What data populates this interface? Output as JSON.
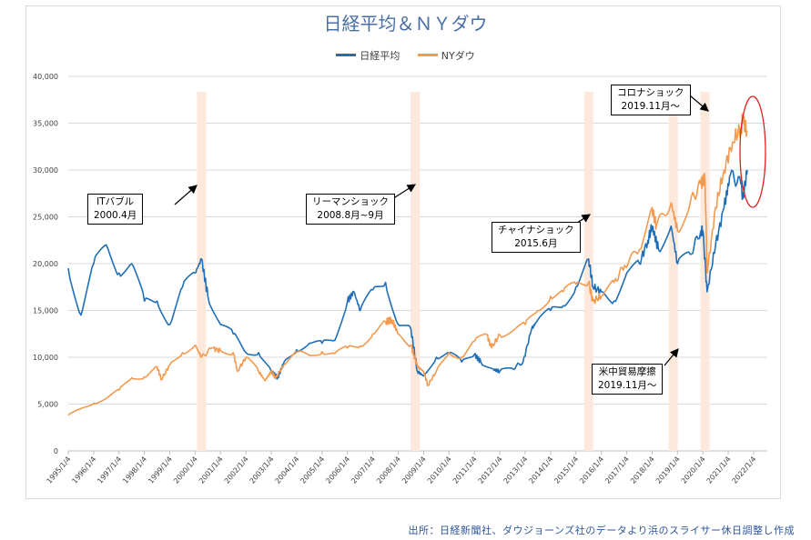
{
  "chart_data": {
    "type": "line",
    "title": "日経平均＆ＮＹダウ",
    "legend_position": "top",
    "grid": true,
    "ylim": [
      0,
      40000
    ],
    "y_ticks": [
      "0",
      "5,000",
      "10,000",
      "15,000",
      "20,000",
      "25,000",
      "30,000",
      "35,000",
      "40,000"
    ],
    "x_ticks": [
      "1995/1/4",
      "1996/1/4",
      "1997/1/4",
      "1998/1/4",
      "1999/1/4",
      "2000/1/4",
      "2001/1/4",
      "2002/1/4",
      "2003/1/4",
      "2004/1/4",
      "2005/1/4",
      "2006/1/4",
      "2007/1/4",
      "2008/1/4",
      "2009/1/4",
      "2010/1/4",
      "2011/1/4",
      "2012/1/4",
      "2013/1/4",
      "2014/1/4",
      "2015/1/4",
      "2016/1/4",
      "2017/1/4",
      "2018/1/4",
      "2019/1/4",
      "2020/1/4",
      "2021/1/4",
      "2022/1/4"
    ],
    "series": [
      {
        "name": "日経平均",
        "color": "#1f6fb8",
        "points": [
          [
            "1995-01",
            19500
          ],
          [
            "1995-07",
            14500
          ],
          [
            "1996-01",
            20000
          ],
          [
            "1996-07",
            22000
          ],
          [
            "1997-01",
            19000
          ],
          [
            "1997-07",
            20000
          ],
          [
            "1998-01",
            16000
          ],
          [
            "1998-07",
            16000
          ],
          [
            "1999-01",
            13500
          ],
          [
            "1999-07",
            17500
          ],
          [
            "2000-01",
            19000
          ],
          [
            "2000-04",
            20500
          ],
          [
            "2000-07",
            16500
          ],
          [
            "2001-01",
            13500
          ],
          [
            "2001-07",
            12500
          ],
          [
            "2002-01",
            10500
          ],
          [
            "2002-07",
            10500
          ],
          [
            "2003-01",
            8500
          ],
          [
            "2003-04",
            7800
          ],
          [
            "2003-07",
            9500
          ],
          [
            "2004-01",
            10800
          ],
          [
            "2004-07",
            11500
          ],
          [
            "2005-01",
            11500
          ],
          [
            "2005-07",
            11800
          ],
          [
            "2006-01",
            16000
          ],
          [
            "2006-04",
            17000
          ],
          [
            "2006-07",
            15000
          ],
          [
            "2007-01",
            17200
          ],
          [
            "2007-07",
            18000
          ],
          [
            "2008-01",
            13500
          ],
          [
            "2008-07",
            13000
          ],
          [
            "2008-10",
            8500
          ],
          [
            "2009-01",
            8000
          ],
          [
            "2009-07",
            10000
          ],
          [
            "2010-01",
            10500
          ],
          [
            "2010-07",
            9500
          ],
          [
            "2011-01",
            10300
          ],
          [
            "2011-04",
            9500
          ],
          [
            "2011-10",
            8700
          ],
          [
            "2012-01",
            8500
          ],
          [
            "2012-07",
            8800
          ],
          [
            "2012-12",
            9500
          ],
          [
            "2013-04",
            13000
          ],
          [
            "2013-07",
            14000
          ],
          [
            "2014-01",
            15000
          ],
          [
            "2014-07",
            15500
          ],
          [
            "2015-01",
            17500
          ],
          [
            "2015-07",
            20500
          ],
          [
            "2015-09",
            17500
          ],
          [
            "2016-01",
            17000
          ],
          [
            "2016-07",
            16000
          ],
          [
            "2017-01",
            19000
          ],
          [
            "2017-07",
            20000
          ],
          [
            "2017-11",
            22500
          ],
          [
            "2018-01",
            24000
          ],
          [
            "2018-04",
            21500
          ],
          [
            "2018-10",
            24000
          ],
          [
            "2019-01",
            20000
          ],
          [
            "2019-07",
            21000
          ],
          [
            "2019-12",
            23500
          ],
          [
            "2020-01",
            23500
          ],
          [
            "2020-03",
            17000
          ],
          [
            "2020-07",
            22000
          ],
          [
            "2020-11",
            26000
          ],
          [
            "2021-02",
            29500
          ],
          [
            "2021-07",
            28500
          ],
          [
            "2021-08",
            27000
          ],
          [
            "2021-10",
            30000
          ]
        ]
      },
      {
        "name": "NYダウ",
        "color": "#f39a4f",
        "points": [
          [
            "1995-01",
            3800
          ],
          [
            "1995-07",
            4500
          ],
          [
            "1996-01",
            5100
          ],
          [
            "1996-07",
            5600
          ],
          [
            "1997-01",
            6500
          ],
          [
            "1997-07",
            7800
          ],
          [
            "1998-01",
            7900
          ],
          [
            "1998-07",
            9000
          ],
          [
            "1998-09",
            7600
          ],
          [
            "1999-01",
            9200
          ],
          [
            "1999-07",
            10500
          ],
          [
            "2000-01",
            11300
          ],
          [
            "2000-04",
            10000
          ],
          [
            "2000-09",
            11000
          ],
          [
            "2001-01",
            10700
          ],
          [
            "2001-07",
            10500
          ],
          [
            "2001-09",
            8500
          ],
          [
            "2002-01",
            10000
          ],
          [
            "2002-07",
            8500
          ],
          [
            "2002-10",
            7500
          ],
          [
            "2003-01",
            8500
          ],
          [
            "2003-03",
            7800
          ],
          [
            "2003-07",
            9200
          ],
          [
            "2004-01",
            10500
          ],
          [
            "2004-07",
            10200
          ],
          [
            "2005-01",
            10600
          ],
          [
            "2005-07",
            10400
          ],
          [
            "2006-01",
            11000
          ],
          [
            "2006-07",
            11200
          ],
          [
            "2007-01",
            12500
          ],
          [
            "2007-07",
            13800
          ],
          [
            "2007-10",
            14000
          ],
          [
            "2008-01",
            12500
          ],
          [
            "2008-07",
            11300
          ],
          [
            "2008-10",
            9000
          ],
          [
            "2009-01",
            8500
          ],
          [
            "2009-03",
            7000
          ],
          [
            "2009-07",
            8500
          ],
          [
            "2010-01",
            10500
          ],
          [
            "2010-07",
            10000
          ],
          [
            "2011-01",
            11700
          ],
          [
            "2011-07",
            12400
          ],
          [
            "2011-09",
            11000
          ],
          [
            "2012-01",
            12400
          ],
          [
            "2012-07",
            12800
          ],
          [
            "2013-01",
            13500
          ],
          [
            "2013-07",
            15000
          ],
          [
            "2014-01",
            16500
          ],
          [
            "2014-07",
            17000
          ],
          [
            "2015-01",
            17800
          ],
          [
            "2015-07",
            18000
          ],
          [
            "2015-09",
            16000
          ],
          [
            "2016-01",
            16500
          ],
          [
            "2016-07",
            18000
          ],
          [
            "2016-12",
            19800
          ],
          [
            "2017-07",
            21500
          ],
          [
            "2018-01",
            26000
          ],
          [
            "2018-03",
            24000
          ],
          [
            "2018-10",
            26500
          ],
          [
            "2019-01",
            23500
          ],
          [
            "2019-07",
            26500
          ],
          [
            "2019-12",
            28500
          ],
          [
            "2020-02",
            29000
          ],
          [
            "2020-03",
            19000
          ],
          [
            "2020-07",
            26000
          ],
          [
            "2020-11",
            30000
          ],
          [
            "2021-03",
            33000
          ],
          [
            "2021-07",
            34500
          ],
          [
            "2021-08",
            35500
          ],
          [
            "2021-10",
            34000
          ]
        ]
      }
    ],
    "shaded_periods": [
      "2000-04",
      "2008-09",
      "2015-07",
      "2018-11",
      "2020-02"
    ],
    "shade_color": "#fde9dc",
    "annotations": [
      {
        "lines": [
          "ITバブル",
          "2000.4月"
        ]
      },
      {
        "lines": [
          "リーマンショック",
          "2008.8月~9月"
        ]
      },
      {
        "lines": [
          "チャイナショック",
          "2015.6月"
        ]
      },
      {
        "lines": [
          "米中貿易摩擦",
          "2019.11月～"
        ]
      },
      {
        "lines": [
          "コロナショック",
          "2019.11月～"
        ]
      }
    ],
    "highlight_color": "#e02020"
  },
  "source": "出所：日経新聞社、ダウジョーンズ社のデータより浜のスライサー休日調整し作成"
}
